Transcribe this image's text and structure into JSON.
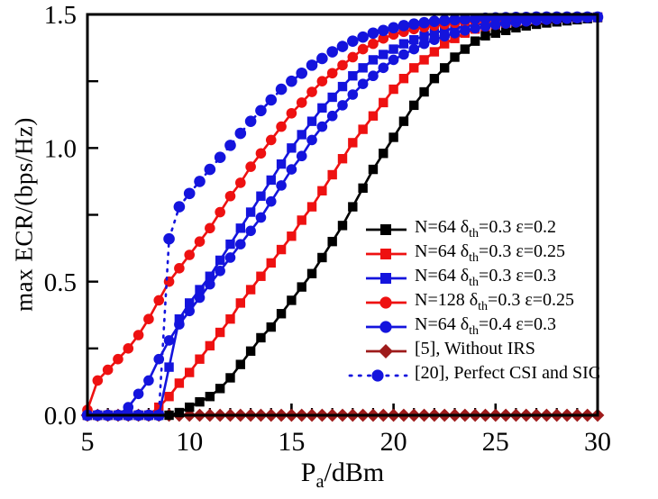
{
  "chart_data": {
    "type": "line",
    "title": "",
    "ylabel": "max ECR/(bps/Hz)",
    "xlabel_parts": {
      "main": "P",
      "sub": "a",
      "rest": "/dBm"
    },
    "xlim": [
      5,
      30
    ],
    "ylim": [
      0,
      1.5
    ],
    "x_major_ticks": [
      5,
      10,
      15,
      20,
      25,
      30
    ],
    "x_minor_step": 1,
    "y_major_ticks": [
      {
        "value": 0.0,
        "label": "0.0"
      },
      {
        "value": 0.5,
        "label": "0.5"
      },
      {
        "value": 1.0,
        "label": "1.0"
      },
      {
        "value": 1.5,
        "label": "1.5"
      }
    ],
    "y_minor_step": 0.25,
    "grid": "off",
    "legend_position": "inside-right-middle-no-frame",
    "x_start": 5,
    "x_step": 0.5,
    "draw_order": [
      5,
      0,
      1,
      2,
      3,
      4,
      6
    ],
    "series": [
      {
        "label_parts": {
          "t1": "N=64 δ",
          "sub": "th",
          "t2": "=0.3 ε=0.2"
        },
        "color": "#000000",
        "marker": "square",
        "line": "solid",
        "y": [
          0,
          0,
          0,
          0,
          0,
          0,
          0,
          0,
          0,
          0.01,
          0.03,
          0.05,
          0.07,
          0.1,
          0.14,
          0.19,
          0.24,
          0.29,
          0.33,
          0.38,
          0.43,
          0.48,
          0.53,
          0.59,
          0.65,
          0.71,
          0.78,
          0.85,
          0.92,
          0.98,
          1.04,
          1.1,
          1.16,
          1.21,
          1.26,
          1.3,
          1.34,
          1.37,
          1.4,
          1.42,
          1.43,
          1.44,
          1.45,
          1.457,
          1.463,
          1.468,
          1.472,
          1.476,
          1.48,
          1.484,
          1.488
        ]
      },
      {
        "label_parts": {
          "t1": "N=64 δ",
          "sub": "th",
          "t2": "=0.3 ε=0.25"
        },
        "color": "#ee1111",
        "marker": "square",
        "line": "solid",
        "y": [
          0,
          0,
          0,
          0,
          0,
          0,
          0,
          0.03,
          0.07,
          0.12,
          0.16,
          0.21,
          0.26,
          0.31,
          0.36,
          0.42,
          0.47,
          0.52,
          0.57,
          0.62,
          0.67,
          0.73,
          0.78,
          0.84,
          0.9,
          0.96,
          1.02,
          1.07,
          1.12,
          1.17,
          1.22,
          1.26,
          1.3,
          1.33,
          1.36,
          1.39,
          1.41,
          1.43,
          1.445,
          1.455,
          1.462,
          1.468,
          1.473,
          1.477,
          1.48,
          1.483,
          1.485,
          1.487,
          1.488,
          1.489,
          1.49
        ]
      },
      {
        "label_parts": {
          "t1": "N=64 δ",
          "sub": "th",
          "t2": "=0.3 ε=0.3"
        },
        "color": "#1414dd",
        "marker": "square",
        "line": "solid",
        "y": [
          0,
          0,
          0,
          0,
          0,
          0,
          0,
          0,
          0.18,
          0.36,
          0.42,
          0.47,
          0.52,
          0.58,
          0.64,
          0.7,
          0.76,
          0.82,
          0.88,
          0.94,
          1.0,
          1.05,
          1.1,
          1.15,
          1.19,
          1.23,
          1.27,
          1.3,
          1.33,
          1.35,
          1.37,
          1.39,
          1.405,
          1.42,
          1.43,
          1.44,
          1.448,
          1.455,
          1.461,
          1.466,
          1.47,
          1.474,
          1.477,
          1.48,
          1.482,
          1.484,
          1.486,
          1.487,
          1.488,
          1.489,
          1.49
        ]
      },
      {
        "label_parts": {
          "t1": "N=128 δ",
          "sub": "th",
          "t2": "=0.3 ε=0.25"
        },
        "color": "#ee1111",
        "marker": "circle",
        "line": "solid",
        "y": [
          0.02,
          0.13,
          0.17,
          0.21,
          0.25,
          0.3,
          0.36,
          0.43,
          0.5,
          0.55,
          0.6,
          0.65,
          0.7,
          0.76,
          0.82,
          0.87,
          0.93,
          0.98,
          1.03,
          1.08,
          1.13,
          1.17,
          1.21,
          1.25,
          1.28,
          1.31,
          1.34,
          1.37,
          1.39,
          1.41,
          1.425,
          1.435,
          1.445,
          1.452,
          1.458,
          1.463,
          1.468,
          1.472,
          1.475,
          1.478,
          1.48,
          1.482,
          1.484,
          1.485,
          1.486,
          1.487,
          1.488,
          1.489,
          1.489,
          1.49,
          1.49
        ]
      },
      {
        "label_parts": {
          "t1": "N=64 δ",
          "sub": "th",
          "t2": "=0.4 ε=0.3"
        },
        "color": "#1414dd",
        "marker": "circle",
        "line": "solid",
        "y": [
          0,
          0,
          0,
          0,
          0.03,
          0.08,
          0.13,
          0.21,
          0.28,
          0.34,
          0.39,
          0.44,
          0.49,
          0.54,
          0.59,
          0.64,
          0.69,
          0.74,
          0.8,
          0.86,
          0.92,
          0.97,
          1.03,
          1.08,
          1.12,
          1.16,
          1.2,
          1.24,
          1.27,
          1.3,
          1.33,
          1.35,
          1.37,
          1.39,
          1.405,
          1.418,
          1.43,
          1.44,
          1.448,
          1.455,
          1.461,
          1.466,
          1.47,
          1.474,
          1.477,
          1.48,
          1.482,
          1.484,
          1.486,
          1.488,
          1.49
        ]
      },
      {
        "label_parts": {
          "t1": "[5], Without IRS",
          "sub": "",
          "t2": ""
        },
        "color": "#9e1b1b",
        "marker": "diamond",
        "line": "solid",
        "y": [
          0,
          0,
          0,
          0,
          0,
          0,
          0,
          0,
          0,
          0,
          0,
          0,
          0,
          0,
          0,
          0,
          0,
          0,
          0,
          0,
          0,
          0,
          0,
          0,
          0,
          0,
          0,
          0,
          0,
          0,
          0,
          0,
          0,
          0,
          0,
          0,
          0,
          0,
          0,
          0,
          0,
          0,
          0,
          0,
          0,
          0,
          0,
          0,
          0,
          0,
          0
        ]
      },
      {
        "label_parts": {
          "t1": "[20], Perfect CSI and SIC",
          "sub": "",
          "t2": ""
        },
        "color": "#1414dd",
        "marker": "circle",
        "line": "dotted",
        "y": [
          0,
          0,
          0,
          0,
          0,
          0,
          0,
          0,
          0.66,
          0.78,
          0.83,
          0.875,
          0.92,
          0.965,
          1.01,
          1.055,
          1.1,
          1.14,
          1.18,
          1.22,
          1.25,
          1.28,
          1.31,
          1.335,
          1.36,
          1.38,
          1.4,
          1.415,
          1.43,
          1.44,
          1.45,
          1.458,
          1.464,
          1.469,
          1.474,
          1.477,
          1.48,
          1.482,
          1.484,
          1.486,
          1.487,
          1.488,
          1.489,
          1.489,
          1.49,
          1.49,
          1.49,
          1.49,
          1.49,
          1.49,
          1.49
        ]
      }
    ]
  },
  "colors": {
    "frame": "#000000",
    "background": "#ffffff",
    "text": "#000000",
    "red_series": "#ee1111",
    "blue_series": "#1414dd",
    "dark_red_series": "#9e1b1b"
  }
}
